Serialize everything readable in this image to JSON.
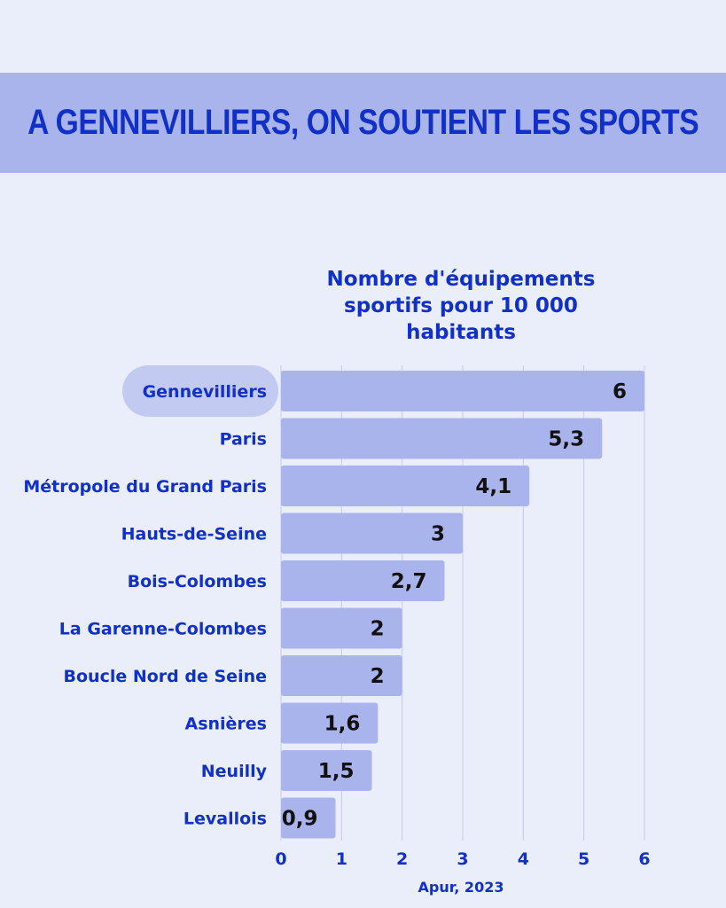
{
  "header": {
    "title": "A GENNEVILLIERS, ON SOUTIENT LES SPORTS"
  },
  "source": "Apur, 2023",
  "colors": {
    "background": "#e9eefa",
    "banner": "#aab4ec",
    "bar": "#aab4ec",
    "highlight_pill": "#c3caf1",
    "text_blue": "#1130c7",
    "value_text": "#111111",
    "gridline": "#c6cbe6"
  },
  "chart_data": {
    "type": "bar",
    "orientation": "horizontal",
    "title": "Nombre d'équipements sportifs pour 10 000 habitants",
    "categories": [
      "Gennevilliers",
      "Paris",
      "Métropole du Grand Paris",
      "Hauts-de-Seine",
      "Bois-Colombes",
      "La Garenne-Colombes",
      "Boucle Nord de Seine",
      "Asnières",
      "Neuilly",
      "Levallois"
    ],
    "values": [
      6,
      5.3,
      4.1,
      3,
      2.7,
      2,
      2,
      1.6,
      1.5,
      0.9
    ],
    "value_labels": [
      "6",
      "5,3",
      "4,1",
      "3",
      "2,7",
      "2",
      "2",
      "1,6",
      "1,5",
      "0,9"
    ],
    "highlighted_category": "Gennevilliers",
    "xlim": [
      0,
      6
    ],
    "x_ticks": [
      0,
      1,
      2,
      3,
      4,
      5,
      6
    ],
    "grid": "vertical"
  }
}
